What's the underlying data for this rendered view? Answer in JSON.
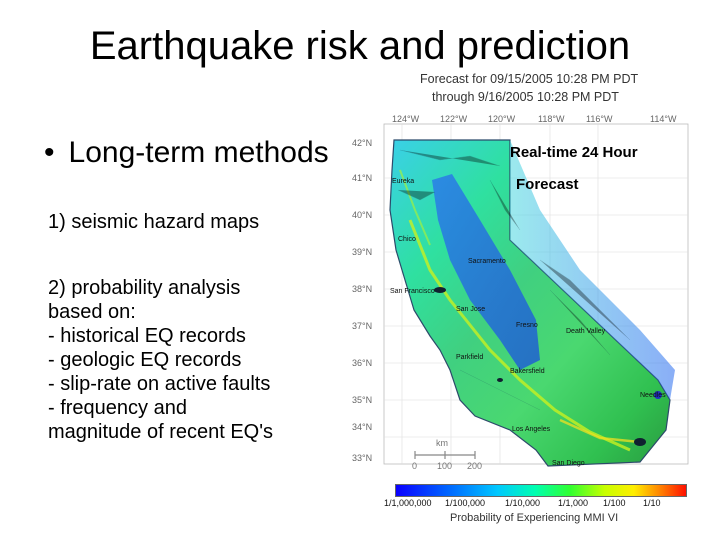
{
  "slide": {
    "title": "Earthquake risk and prediction",
    "bullet": "Long-term methods",
    "bullet_symbol": "•",
    "item1": "1) seismic hazard maps",
    "item2_lines": [
      "2) probability analysis",
      "based on:",
      "- historical EQ records",
      "- geologic EQ records",
      "- slip-rate on active faults",
      "- frequency and",
      "magnitude of recent EQ's"
    ]
  },
  "map": {
    "forecast_line1": "Forecast for 09/15/2005 10:28 PM PDT",
    "forecast_line2": "through 9/16/2005 10:28 PM PDT",
    "overlay_line1": "Real-time 24 Hour",
    "overlay_line2": "Forecast",
    "longitudes": [
      "124°W",
      "122°W",
      "120°W",
      "118°W",
      "116°W",
      "114°W"
    ],
    "latitudes": [
      "42°N",
      "41°N",
      "40°N",
      "39°N",
      "38°N",
      "37°N",
      "36°N",
      "35°N",
      "34°N",
      "33°N"
    ],
    "cities": {
      "eureka": "Eureka",
      "chico": "Chico",
      "sacramento": "Sacramento",
      "san_francisco": "San Francisco",
      "san_jose": "San Jose",
      "fresno": "Fresno",
      "death_valley": "Death Valley",
      "parkfield": "Parkfield",
      "bakersfield": "Bakersfield",
      "needles": "Needles",
      "los_angeles": "Los Angeles",
      "san_diego": "San Diego"
    },
    "scale": {
      "unit": "km",
      "ticks": [
        "0",
        "100",
        "200"
      ]
    },
    "colorbar_ticks": [
      "1/1,000,000",
      "1/100,000",
      "1/10,000",
      "1/1,000",
      "1/100",
      "1/10"
    ],
    "colorbar_label": "Probability of Experiencing MMI VI"
  }
}
